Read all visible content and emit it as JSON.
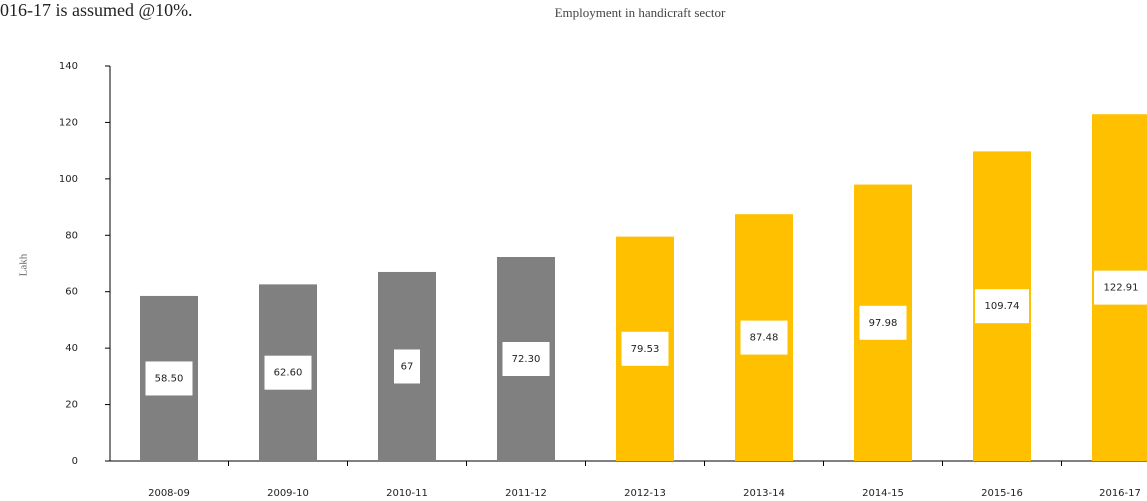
{
  "note_text": "016-17 is assumed @10%.",
  "chart_data": {
    "type": "bar",
    "title": "Employment in handicraft sector",
    "y_label": "Lakh",
    "categories": [
      "2008-09",
      "2009-10",
      "2010-11",
      "2011-12",
      "2012-13",
      "2013-14",
      "2014-15",
      "2015-16",
      "2016-17"
    ],
    "values": [
      58.5,
      62.6,
      67,
      72.3,
      79.53,
      87.48,
      97.98,
      109.74,
      122.91
    ],
    "value_labels": [
      "58.50",
      "62.60",
      "67",
      "72.30",
      "79.53",
      "87.48",
      "97.98",
      "109.74",
      "122.91"
    ],
    "colors": [
      "#808080",
      "#808080",
      "#808080",
      "#808080",
      "#ffc000",
      "#ffc000",
      "#ffc000",
      "#ffc000",
      "#ffc000"
    ],
    "ylim": [
      0,
      140
    ],
    "yticks": [
      0,
      20,
      40,
      60,
      80,
      100,
      120,
      140
    ],
    "grid": false
  }
}
